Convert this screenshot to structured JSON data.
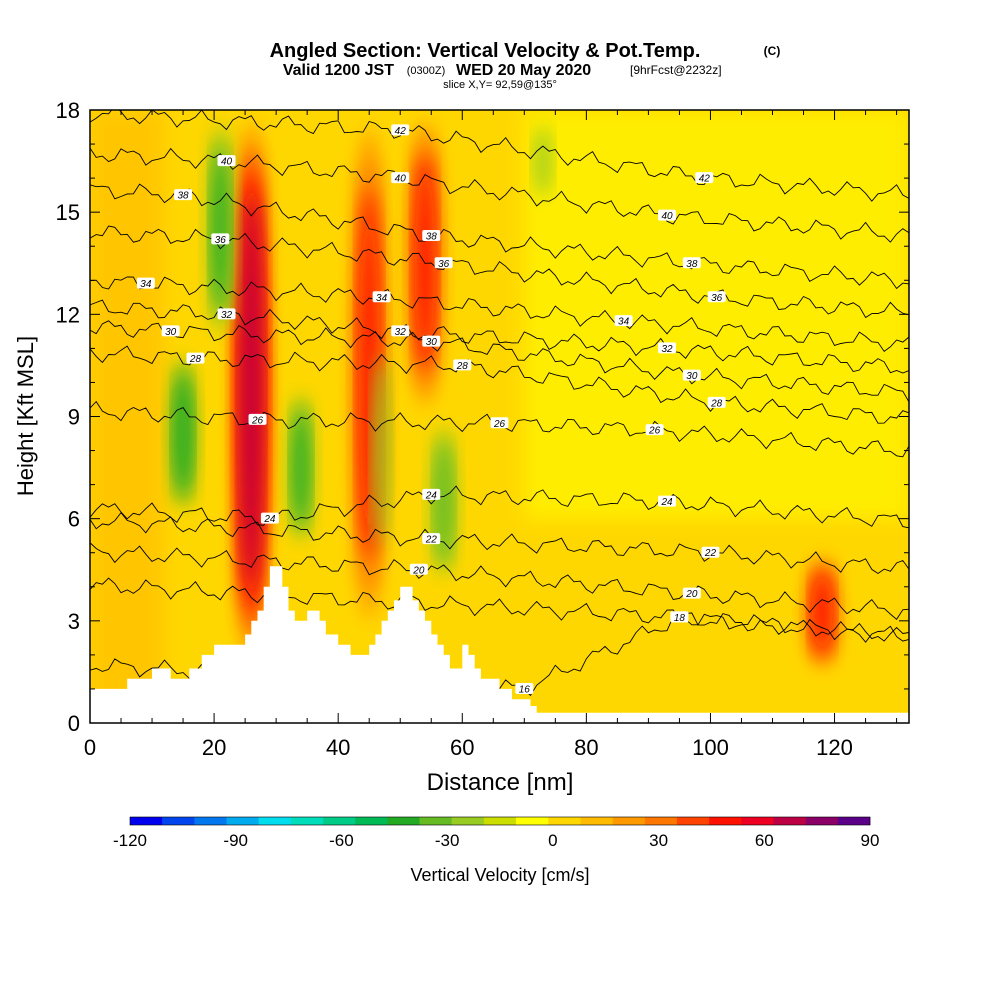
{
  "title": {
    "main": "Angled Section: Vertical Velocity & Pot.Temp.",
    "main_suffix": "(C)",
    "valid_prefix": "Valid 1200 JST",
    "valid_z": "(0300Z)",
    "valid_date": "WED 20 May 2020",
    "valid_fcst": "[9hrFcst@2232z]",
    "slice": "slice X,Y= 92,59@135°"
  },
  "chart_data": {
    "type": "heatmap",
    "title": "Angled Section: Vertical Velocity & Pot.Temp.",
    "xlabel": "Distance [nm]",
    "ylabel": "Height [Kft MSL]",
    "xlim": [
      0,
      132
    ],
    "ylim": [
      0,
      18
    ],
    "x_ticks": [
      "0",
      "20",
      "40",
      "60",
      "80",
      "100",
      "120"
    ],
    "y_ticks": [
      "0",
      "3",
      "6",
      "9",
      "12",
      "15",
      "18"
    ],
    "colorbar": {
      "label": "Vertical Velocity [cm/s]",
      "ticks": [
        "-120",
        "-90",
        "-60",
        "-30",
        "0",
        "30",
        "60",
        "90"
      ],
      "min": -120,
      "max": 90,
      "step": 10,
      "colors": [
        "#0000ee",
        "#0044ee",
        "#0077ee",
        "#00aaee",
        "#00ddee",
        "#00ddbb",
        "#00cc88",
        "#00bb55",
        "#22aa22",
        "#66bb22",
        "#99cc22",
        "#ccdd00",
        "#ffff00",
        "#ffd700",
        "#ffbb00",
        "#ff9900",
        "#ff7700",
        "#ff4400",
        "#ff1100",
        "#ee0022",
        "#bb0044",
        "#8b0066",
        "#5a0088"
      ]
    },
    "vertical_velocity_features": [
      {
        "x": 26,
        "y_from": 1.5,
        "y_to": 18,
        "peak": 80
      },
      {
        "x": 45,
        "y_from": 2.5,
        "y_to": 18,
        "peak": 55
      },
      {
        "x": 54,
        "y_from": 9,
        "y_to": 18,
        "peak": 55
      },
      {
        "x": 118,
        "y_from": 1.5,
        "y_to": 5,
        "peak": 60
      },
      {
        "x": 15,
        "y_from": 6,
        "y_to": 11,
        "peak": -45
      },
      {
        "x": 21,
        "y_from": 11,
        "y_to": 18,
        "peak": -40
      },
      {
        "x": 34,
        "y_from": 5,
        "y_to": 10,
        "peak": -40
      },
      {
        "x": 47,
        "y_from": 4,
        "y_to": 12,
        "peak": -25
      },
      {
        "x": 57,
        "y_from": 4,
        "y_to": 9,
        "peak": -30
      },
      {
        "x": 73,
        "y_from": 15,
        "y_to": 18,
        "peak": -20
      }
    ],
    "terrain": {
      "x": [
        0,
        5,
        6,
        8,
        10,
        12,
        13,
        15,
        16,
        18,
        20,
        22,
        24,
        25,
        26,
        27,
        28,
        29,
        30,
        31,
        32,
        33,
        34,
        35,
        36,
        37,
        38,
        39,
        40,
        41,
        42,
        43,
        44,
        45,
        46,
        47,
        48,
        49,
        50,
        51,
        52,
        53,
        54,
        55,
        56,
        57,
        58,
        59,
        60,
        61,
        62,
        63,
        64,
        65,
        66,
        67,
        68,
        69,
        70,
        71,
        72,
        73,
        132
      ],
      "height": [
        1.0,
        1.0,
        1.3,
        1.3,
        1.6,
        1.6,
        1.3,
        1.3,
        1.6,
        2.0,
        2.3,
        2.3,
        2.3,
        2.6,
        3.0,
        3.3,
        4.0,
        4.6,
        4.6,
        4.0,
        3.3,
        3.0,
        3.0,
        3.3,
        3.3,
        3.0,
        2.6,
        2.6,
        2.3,
        2.3,
        2.0,
        2.0,
        2.0,
        2.3,
        2.6,
        3.0,
        3.3,
        3.6,
        4.0,
        4.0,
        3.6,
        3.3,
        3.0,
        2.6,
        2.3,
        2.0,
        1.6,
        1.6,
        2.3,
        2.0,
        1.6,
        1.3,
        1.3,
        1.3,
        1.0,
        1.0,
        0.7,
        0.7,
        0.7,
        0.5,
        0.3,
        0.3,
        0.3
      ]
    },
    "theta_contours": [
      {
        "value": 16,
        "labels": [
          {
            "x": 70,
            "y": 1
          },
          {
            "x": 95,
            "y": 3.1
          }
        ]
      },
      {
        "value": 18,
        "labels": [
          {
            "x": 95,
            "y": 3.1
          }
        ]
      },
      {
        "value": 20,
        "labels": [
          {
            "x": 53,
            "y": 4.5
          },
          {
            "x": 97,
            "y": 3.8
          }
        ]
      },
      {
        "value": 22,
        "labels": [
          {
            "x": 55,
            "y": 5.4
          },
          {
            "x": 100,
            "y": 5
          }
        ]
      },
      {
        "value": 24,
        "labels": [
          {
            "x": 29,
            "y": 6
          },
          {
            "x": 55,
            "y": 6.7
          },
          {
            "x": 93,
            "y": 6.5
          }
        ]
      },
      {
        "value": 26,
        "labels": [
          {
            "x": 27,
            "y": 8.9
          },
          {
            "x": 66,
            "y": 8.8
          },
          {
            "x": 91,
            "y": 8.6
          }
        ]
      },
      {
        "value": 28,
        "labels": [
          {
            "x": 17,
            "y": 10.7
          },
          {
            "x": 60,
            "y": 10.5
          },
          {
            "x": 101,
            "y": 9.4
          }
        ]
      },
      {
        "value": 30,
        "labels": [
          {
            "x": 13,
            "y": 11.5
          },
          {
            "x": 55,
            "y": 11.2
          },
          {
            "x": 97,
            "y": 10.2
          }
        ]
      },
      {
        "value": 32,
        "labels": [
          {
            "x": 22,
            "y": 12
          },
          {
            "x": 50,
            "y": 11.5
          },
          {
            "x": 93,
            "y": 11
          }
        ]
      },
      {
        "value": 34,
        "labels": [
          {
            "x": 9,
            "y": 12.9
          },
          {
            "x": 47,
            "y": 12.5
          },
          {
            "x": 86,
            "y": 11.8
          }
        ]
      },
      {
        "value": 36,
        "labels": [
          {
            "x": 21,
            "y": 14.2
          },
          {
            "x": 57,
            "y": 13.5
          },
          {
            "x": 101,
            "y": 12.5
          }
        ]
      },
      {
        "value": 38,
        "labels": [
          {
            "x": 15,
            "y": 15.5
          },
          {
            "x": 55,
            "y": 14.3
          },
          {
            "x": 97,
            "y": 13.5
          }
        ]
      },
      {
        "value": 40,
        "labels": [
          {
            "x": 22,
            "y": 16.5
          },
          {
            "x": 50,
            "y": 16
          },
          {
            "x": 93,
            "y": 14.9
          }
        ]
      },
      {
        "value": 42,
        "labels": [
          {
            "x": 50,
            "y": 17.4
          },
          {
            "x": 99,
            "y": 16
          }
        ]
      }
    ]
  }
}
